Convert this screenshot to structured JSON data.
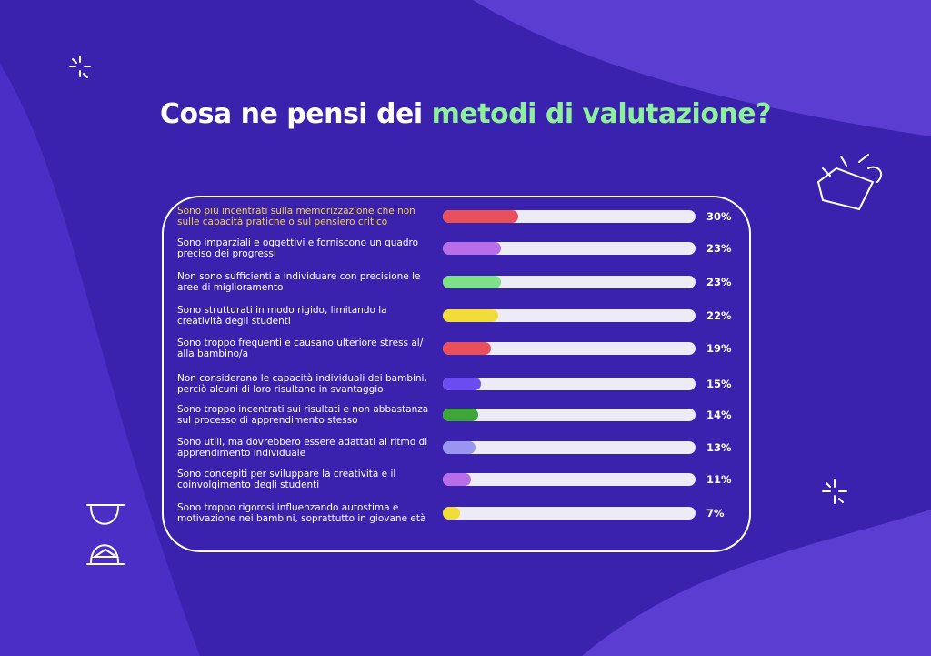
{
  "chart_data": {
    "type": "bar",
    "orientation": "horizontal",
    "title": "Cosa ne pensi dei",
    "title_highlight": "metodi di valutazione?",
    "categories": [
      "Sono più incentrati sulla memorizzazione che non sulle capacità pratiche o sul pensiero critico",
      "Sono imparziali e oggettivi e forniscono un quadro preciso dei progressi",
      "Non sono sufficienti a individuare con precisione le aree di miglioramento",
      "Sono strutturati in modo rigido, limitando la creatività degli studenti",
      "Sono troppo frequenti e causano ulteriore stress al/ alla bambino/a",
      "Non considerano le capacità individuali dei bambini, perciò alcuni di loro risultano in svantaggio",
      "Sono troppo incentrati sui risultati e non abbastanza sul processo di apprendimento stesso",
      "Sono utili, ma dovrebbero essere adattati al ritmo di apprendimento individuale",
      "Sono concepiti per sviluppare la creatività e il coinvolgimento degli studenti",
      "Sono troppo rigorosi influenzando autostima e motivazione nei bambini, soprattutto in giovane età"
    ],
    "values": [
      30,
      23,
      23,
      22,
      19,
      15,
      14,
      13,
      11,
      7
    ],
    "value_labels": [
      "30%",
      "23%",
      "23%",
      "22%",
      "19%",
      "15%",
      "14%",
      "13%",
      "11%",
      "7%"
    ],
    "colors": [
      "#e8505b",
      "#b76ee8",
      "#7ee08a",
      "#f2dc3a",
      "#e8505b",
      "#6a4cf0",
      "#3fa63a",
      "#9a95f0",
      "#b76ee8",
      "#f2dc3a"
    ],
    "label_colors": [
      "#f5d33b",
      "#ffffff",
      "#ffffff",
      "#ffffff",
      "#ffffff",
      "#ffffff",
      "#ffffff",
      "#ffffff",
      "#ffffff",
      "#ffffff"
    ],
    "xlim": [
      0,
      100
    ]
  }
}
